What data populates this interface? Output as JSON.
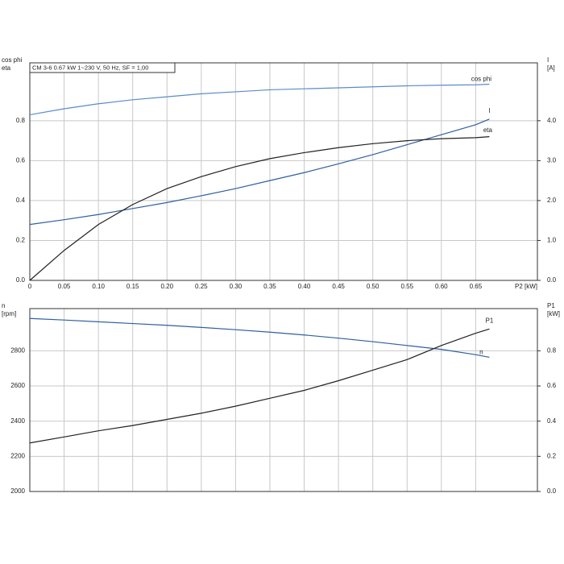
{
  "chart_data": [
    {
      "type": "line",
      "title": "CM 3-6   0.67 kW   1~230 V, 50 Hz, SF = 1,00",
      "x_label": "P2 [kW]",
      "y_label": [
        "cos phi",
        "eta"
      ],
      "y2_label": [
        "I",
        "[A]"
      ],
      "x": [
        0,
        0.05,
        0.1,
        0.15,
        0.2,
        0.25,
        0.3,
        0.35,
        0.4,
        0.45,
        0.5,
        0.55,
        0.6,
        0.65,
        0.67
      ],
      "xlim": [
        0,
        0.74
      ],
      "xticks": [
        0,
        0.05,
        {
          "value": 0.1,
          "label": "0.10"
        },
        0.15,
        {
          "value": 0.2,
          "label": "0.20"
        },
        0.25,
        {
          "value": 0.3,
          "label": "0.30"
        },
        0.35,
        {
          "value": 0.4,
          "label": "0.40"
        },
        0.45,
        {
          "value": 0.5,
          "label": "0.50"
        },
        0.55,
        {
          "value": 0.6,
          "label": "0.60"
        },
        0.65
      ],
      "ylim": [
        0,
        1.09
      ],
      "yticks": [
        {
          "value": 0,
          "label": "0.0"
        },
        0.2,
        0.4,
        0.6,
        0.8
      ],
      "y2lim": [
        0,
        5.45
      ],
      "y2ticks": [
        {
          "value": 0,
          "label": "0.0"
        },
        {
          "value": 1,
          "label": "1.0"
        },
        {
          "value": 2,
          "label": "2.0"
        },
        {
          "value": 3,
          "label": "3.0"
        },
        {
          "value": 4,
          "label": "4.0"
        }
      ],
      "grid": true,
      "series": [
        {
          "name": "cos phi",
          "color": "#5b8cc4",
          "values": [
            0.83,
            0.86,
            0.885,
            0.905,
            0.92,
            0.935,
            0.945,
            0.955,
            0.96,
            0.965,
            0.97,
            0.975,
            0.978,
            0.98,
            0.983
          ]
        },
        {
          "name": "I",
          "color": "#2f5f9e",
          "axis": "y2",
          "values": [
            1.4,
            1.52,
            1.65,
            1.8,
            1.95,
            2.12,
            2.3,
            2.5,
            2.7,
            2.92,
            3.15,
            3.4,
            3.65,
            3.9,
            4.04
          ]
        },
        {
          "name": "eta",
          "color": "#222222",
          "values": [
            0,
            0.15,
            0.28,
            0.38,
            0.46,
            0.52,
            0.57,
            0.61,
            0.64,
            0.665,
            0.685,
            0.7,
            0.71,
            0.715,
            0.72
          ]
        }
      ]
    },
    {
      "type": "line",
      "y_label": [
        "n",
        "[rpm]"
      ],
      "y2_label": [
        "P1",
        "[kW]"
      ],
      "x": [
        0,
        0.05,
        0.1,
        0.15,
        0.2,
        0.25,
        0.3,
        0.35,
        0.4,
        0.45,
        0.5,
        0.55,
        0.6,
        0.65,
        0.67
      ],
      "xlim": [
        0,
        0.74
      ],
      "xticks": [
        0,
        0.05,
        0.1,
        0.15,
        0.2,
        0.25,
        0.3,
        0.35,
        0.4,
        0.45,
        0.5,
        0.55,
        0.6,
        0.65
      ],
      "ylim": [
        2000,
        3040
      ],
      "yticks": [
        2000,
        2200,
        2400,
        2600,
        2800
      ],
      "y2lim": [
        0,
        1.04
      ],
      "y2ticks": [
        {
          "value": 0,
          "label": "0.0"
        },
        0.2,
        0.4,
        0.6,
        0.8
      ],
      "grid": true,
      "series": [
        {
          "name": "n",
          "color": "#2f5f9e",
          "values": [
            2984,
            2975,
            2965,
            2955,
            2945,
            2933,
            2920,
            2906,
            2890,
            2872,
            2852,
            2830,
            2808,
            2778,
            2763
          ]
        },
        {
          "name": "P1",
          "color": "#222222",
          "axis": "y2",
          "values": [
            0.276,
            0.31,
            0.345,
            0.375,
            0.41,
            0.445,
            0.485,
            0.53,
            0.575,
            0.63,
            0.69,
            0.75,
            0.83,
            0.9,
            0.924
          ]
        }
      ]
    }
  ]
}
